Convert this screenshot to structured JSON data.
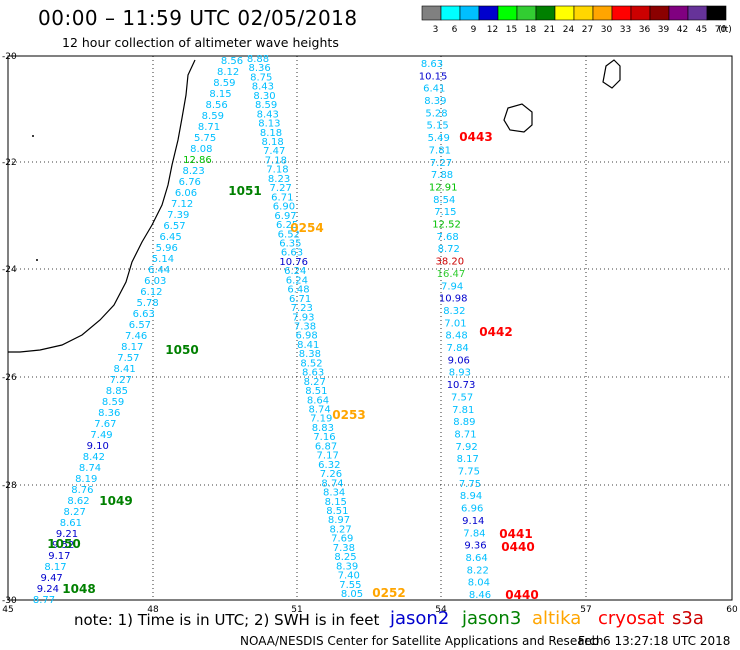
{
  "title": "00:00 – 11:59 UTC 02/05/2018",
  "subtitle": "12 hour collection of altimeter wave heights",
  "colorbar": {
    "labels": [
      "3",
      "6",
      "9",
      "12",
      "15",
      "18",
      "21",
      "24",
      "27",
      "30",
      "33",
      "36",
      "39",
      "42",
      "45",
      "70"
    ],
    "unit": "(ft)",
    "colors": [
      "#808080",
      "#00ffff",
      "#00bfff",
      "#0000cd",
      "#00ff00",
      "#32cd32",
      "#008000",
      "#ffff00",
      "#ffd700",
      "#ffa500",
      "#ff0000",
      "#cc0000",
      "#8b0000",
      "#800080",
      "#663399",
      "#000000"
    ]
  },
  "axes": {
    "x_ticks": [
      "45",
      "48",
      "51",
      "54",
      "57",
      "60"
    ],
    "y_ticks": [
      "-20",
      "-22",
      "-24",
      "-26",
      "-28",
      "-30"
    ]
  },
  "tracks": [
    {
      "name": "A",
      "labels": [
        "8.56",
        "8.12",
        "8.59",
        "8.15",
        "8.56",
        "8.59",
        "8.71",
        "5.75",
        "8.08",
        "12.86",
        "8.23",
        "6.76",
        "6.06",
        "7.12",
        "7.39",
        "6.57",
        "6.45",
        "5.96",
        "5.14",
        "6.44",
        "6.03",
        "6.12",
        "5.78",
        "6.63",
        "6.57",
        "7.46",
        "8.17",
        "7.57",
        "8.41",
        "7.27",
        "8.85",
        "8.59",
        "8.36",
        "7.67",
        "7.49",
        "9.10",
        "8.42",
        "8.74",
        "8.19",
        "8.76",
        "8.62",
        "8.27",
        "8.61",
        "9.21",
        "9.52",
        "9.17",
        "8.17",
        "9.47",
        "9.24",
        "8.77"
      ]
    },
    {
      "name": "B",
      "labels": [
        "8.88",
        "8.36",
        "8.75",
        "8.43",
        "8.30",
        "8.59",
        "8.43",
        "8.13",
        "8.18",
        "8.18",
        "7.47",
        "7.18",
        "7.18",
        "8.23",
        "7.27",
        "6.71",
        "6.90",
        "6.97",
        "6.25",
        "6.52",
        "6.35",
        "6.63",
        "10.76",
        "6.24",
        "6.24",
        "6.48",
        "6.71",
        "7.23",
        "7.93",
        "7.38",
        "6.98",
        "8.41",
        "8.38",
        "8.52",
        "8.63",
        "8.27",
        "8.51",
        "8.64",
        "8.74",
        "7.19",
        "8.83",
        "7.16",
        "6.87",
        "7.17",
        "6.32",
        "7.26",
        "8.74",
        "8.34",
        "8.15",
        "8.51",
        "8.97",
        "8.27",
        "7.69",
        "7.38",
        "8.25",
        "8.39",
        "7.40",
        "7.55",
        "8.05"
      ]
    },
    {
      "name": "C",
      "labels": [
        "8.63",
        "10.15",
        "6.41",
        "8.39",
        "5.28",
        "5.15",
        "5.49",
        "7.81",
        "7.27",
        "7.88",
        "12.91",
        "8.54",
        "7.15",
        "12.52",
        "7.68",
        "8.72",
        "38.20",
        "16.47",
        "7.94",
        "10.98",
        "8.32",
        "7.01",
        "8.48",
        "7.84",
        "9.06",
        "8.93",
        "10.73",
        "7.57",
        "7.81",
        "8.89",
        "8.71",
        "7.92",
        "8.17",
        "7.75",
        "7.75",
        "8.94",
        "6.96",
        "9.14",
        "7.84",
        "9.36",
        "8.64",
        "8.22",
        "8.04",
        "8.46"
      ]
    }
  ],
  "time_tags": [
    {
      "text": "0443",
      "color": "#ff0000"
    },
    {
      "text": "0442",
      "color": "#ff0000"
    },
    {
      "text": "0441",
      "color": "#ff0000"
    },
    {
      "text": "0440",
      "color": "#ff0000"
    },
    {
      "text": "0440",
      "color": "#ff0000"
    },
    {
      "text": "1051",
      "color": "#008000"
    },
    {
      "text": "1050",
      "color": "#008000"
    },
    {
      "text": "1049",
      "color": "#008000"
    },
    {
      "text": "1050",
      "color": "#008000"
    },
    {
      "text": "1048",
      "color": "#008000"
    },
    {
      "text": "0254",
      "color": "#ffa500"
    },
    {
      "text": "0253",
      "color": "#ffa500"
    },
    {
      "text": "0252",
      "color": "#ffa500"
    }
  ],
  "note": "note:  1) Time is in UTC;  2) SWH is in feet",
  "satellites": [
    {
      "name": "jason2",
      "color": "#0000cd"
    },
    {
      "name": "jason3",
      "color": "#008000"
    },
    {
      "name": "altika",
      "color": "#ffa500"
    },
    {
      "name": "cryosat",
      "color": "#ff0000"
    },
    {
      "name": "s3a",
      "color": "#cc0000"
    }
  ],
  "footer": "NOAA/NESDIS Center for Satellite Applications and Research",
  "footer_date": "Feb  6 13:27:18 UTC 2018"
}
